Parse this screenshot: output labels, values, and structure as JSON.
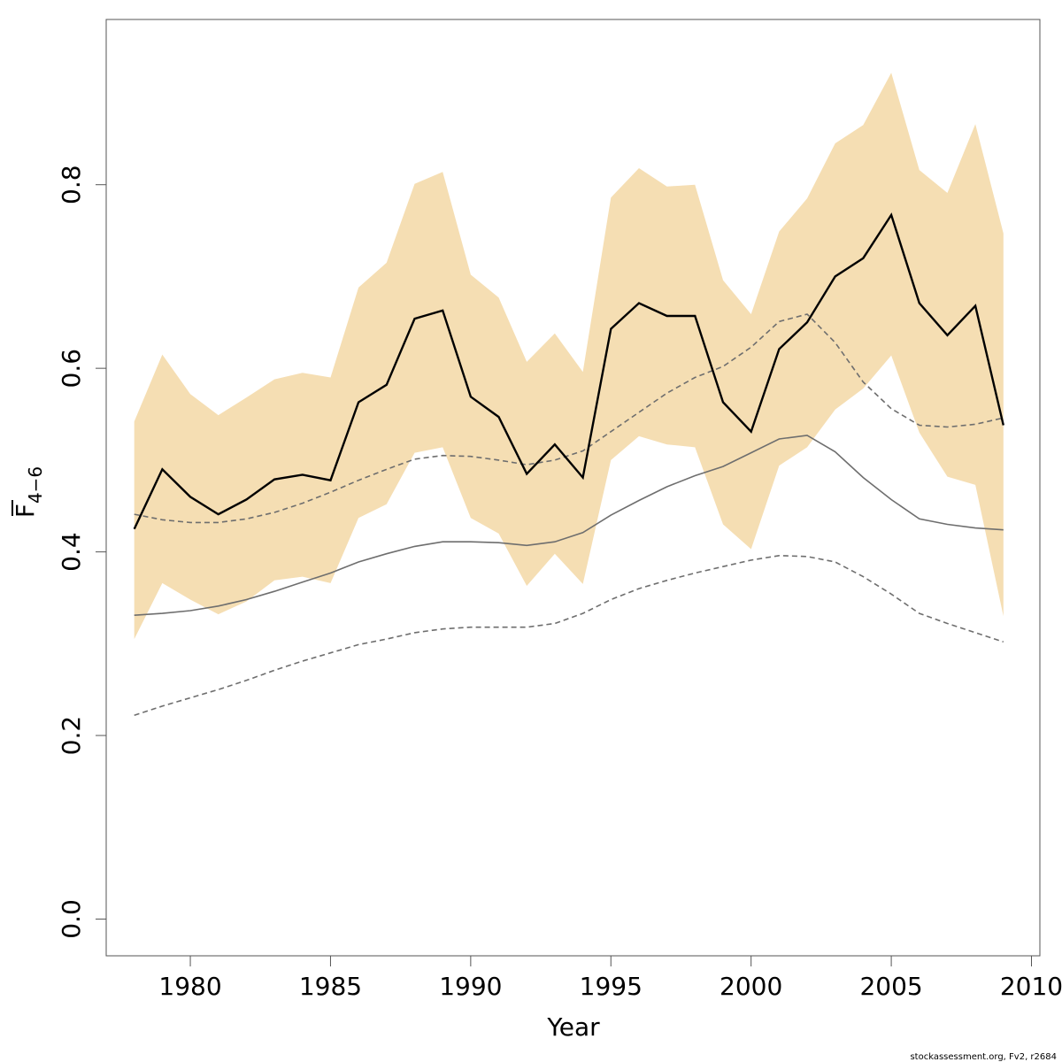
{
  "chart_data": {
    "type": "line",
    "title": "",
    "xlabel": "Year",
    "ylabel": "F4−6",
    "ylabel_main": "F",
    "ylabel_sub": "4−6",
    "xlim": [
      1977.0,
      2010.3
    ],
    "ylim": [
      -0.04,
      0.98
    ],
    "x_ticks": [
      1980,
      1985,
      1990,
      1995,
      2000,
      2005,
      2010
    ],
    "x_tick_labels": [
      "1980",
      "1985",
      "1990",
      "1995",
      "2000",
      "2005",
      "2010"
    ],
    "y_ticks": [
      0.0,
      0.2,
      0.4,
      0.6,
      0.8
    ],
    "y_tick_labels": [
      "0.0",
      "0.2",
      "0.4",
      "0.6",
      "0.8"
    ],
    "grid": false,
    "legend": "none",
    "colors": {
      "band": "#f5deb3",
      "estimate": "#000000",
      "mean_line": "#6e6e6e",
      "dashed_lines": "#6e6e6e",
      "frame": "#555555"
    },
    "x": [
      1978,
      1979,
      1980,
      1981,
      1982,
      1983,
      1984,
      1985,
      1986,
      1987,
      1988,
      1989,
      1990,
      1991,
      1992,
      1993,
      1994,
      1995,
      1996,
      1997,
      1998,
      1999,
      2000,
      2001,
      2002,
      2003,
      2004,
      2005,
      2006,
      2007,
      2008,
      2009
    ],
    "series": [
      {
        "role": "confidence-band",
        "upper": [
          0.542,
          0.615,
          0.572,
          0.549,
          0.568,
          0.588,
          0.595,
          0.59,
          0.688,
          0.715,
          0.801,
          0.814,
          0.702,
          0.677,
          0.607,
          0.638,
          0.596,
          0.786,
          0.818,
          0.798,
          0.8,
          0.696,
          0.659,
          0.749,
          0.785,
          0.845,
          0.865,
          0.922,
          0.816,
          0.791,
          0.866,
          0.747
        ],
        "lower": [
          0.305,
          0.366,
          0.348,
          0.332,
          0.346,
          0.369,
          0.373,
          0.366,
          0.437,
          0.452,
          0.508,
          0.514,
          0.437,
          0.42,
          0.363,
          0.398,
          0.365,
          0.5,
          0.526,
          0.517,
          0.514,
          0.43,
          0.403,
          0.494,
          0.514,
          0.555,
          0.578,
          0.614,
          0.53,
          0.482,
          0.473,
          0.33
        ]
      },
      {
        "role": "estimate",
        "values": [
          0.425,
          0.49,
          0.46,
          0.441,
          0.457,
          0.479,
          0.484,
          0.478,
          0.563,
          0.582,
          0.654,
          0.663,
          0.569,
          0.547,
          0.485,
          0.517,
          0.481,
          0.643,
          0.671,
          0.657,
          0.657,
          0.563,
          0.531,
          0.621,
          0.65,
          0.7,
          0.72,
          0.767,
          0.671,
          0.636,
          0.668,
          0.538
        ]
      },
      {
        "role": "mean",
        "values": [
          0.331,
          0.333,
          0.336,
          0.341,
          0.348,
          0.357,
          0.367,
          0.377,
          0.389,
          0.398,
          0.406,
          0.411,
          0.411,
          0.41,
          0.407,
          0.411,
          0.421,
          0.44,
          0.456,
          0.471,
          0.483,
          0.493,
          0.508,
          0.523,
          0.527,
          0.509,
          0.481,
          0.457,
          0.436,
          0.43,
          0.426,
          0.424
        ]
      },
      {
        "role": "upper-dashed",
        "values": [
          0.441,
          0.435,
          0.432,
          0.432,
          0.436,
          0.443,
          0.453,
          0.465,
          0.478,
          0.49,
          0.501,
          0.505,
          0.504,
          0.5,
          0.495,
          0.5,
          0.51,
          0.531,
          0.552,
          0.573,
          0.59,
          0.602,
          0.623,
          0.651,
          0.659,
          0.628,
          0.585,
          0.556,
          0.538,
          0.536,
          0.539,
          0.546
        ]
      },
      {
        "role": "lower-dashed",
        "values": [
          0.222,
          0.232,
          0.241,
          0.25,
          0.26,
          0.271,
          0.281,
          0.29,
          0.299,
          0.305,
          0.312,
          0.316,
          0.318,
          0.318,
          0.318,
          0.322,
          0.333,
          0.348,
          0.36,
          0.369,
          0.377,
          0.384,
          0.391,
          0.396,
          0.395,
          0.389,
          0.373,
          0.354,
          0.333,
          0.322,
          0.312,
          0.302
        ]
      }
    ]
  },
  "footer": {
    "credit": "stockassessment.org, Fv2, r2684"
  }
}
